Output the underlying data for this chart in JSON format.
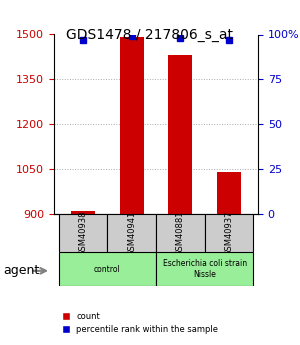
{
  "title": "GDS1478 / 217806_s_at",
  "samples": [
    "GSM40938",
    "GSM40941",
    "GSM40881",
    "GSM40937"
  ],
  "counts": [
    910,
    1490,
    1430,
    1040
  ],
  "percentiles": [
    97,
    99,
    98,
    97
  ],
  "ylim_left": [
    900,
    1500
  ],
  "ylim_right": [
    0,
    100
  ],
  "yticks_left": [
    900,
    1050,
    1200,
    1350,
    1500
  ],
  "yticks_right": [
    0,
    25,
    50,
    75,
    100
  ],
  "ytick_labels_right": [
    "0",
    "25",
    "50",
    "75",
    "100%"
  ],
  "bar_color": "#cc0000",
  "dot_color": "#0000cc",
  "groups": [
    {
      "label": "control",
      "start": 0,
      "end": 2,
      "color": "#99ee99"
    },
    {
      "label": "Escherichia coli strain\nNissle",
      "start": 2,
      "end": 4,
      "color": "#99ee99"
    }
  ],
  "agent_label": "agent",
  "legend_count_label": "count",
  "legend_percentile_label": "percentile rank within the sample",
  "grid_color": "#aaaaaa",
  "bar_width": 0.5,
  "left_tick_color": "#cc0000",
  "right_tick_color": "#0000cc"
}
